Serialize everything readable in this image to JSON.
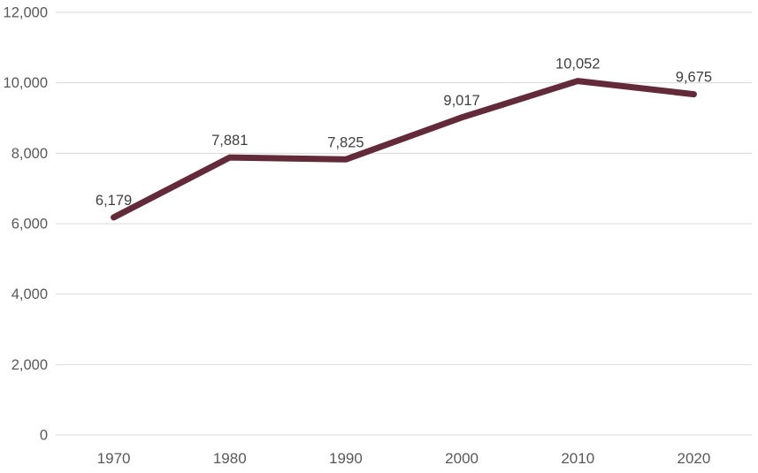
{
  "chart_data": {
    "type": "line",
    "title": "",
    "xlabel": "",
    "ylabel": "",
    "categories": [
      "1970",
      "1980",
      "1990",
      "2000",
      "2010",
      "2020"
    ],
    "series": [
      {
        "name": "series-1",
        "values": [
          6179,
          7881,
          7825,
          9017,
          10052,
          9675
        ],
        "data_labels": [
          "6,179",
          "7,881",
          "7,825",
          "9,017",
          "10,052",
          "9,675"
        ]
      }
    ],
    "y_axis": {
      "min": 0,
      "max": 12000,
      "tick_step": 2000,
      "tick_labels": [
        "0",
        "2,000",
        "4,000",
        "6,000",
        "8,000",
        "10,000",
        "12,000"
      ]
    },
    "grid": "horizontal",
    "legend": "none",
    "colors": {
      "line": "#632b3a",
      "gridline": "#dadada",
      "axis_label": "#595959",
      "data_label": "#3f3f3f",
      "background": "#ffffff"
    }
  }
}
